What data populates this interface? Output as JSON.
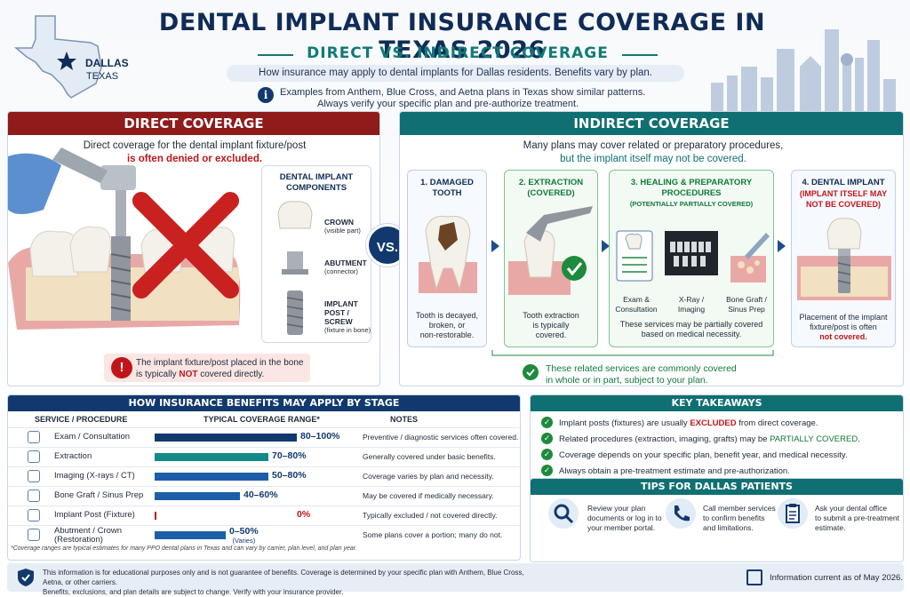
{
  "header": {
    "title": "DENTAL IMPLANT INSURANCE COVERAGE IN TEXAS 2026",
    "subtitle": "DIRECT VS. INDIRECT COVERAGE",
    "tagline": "How insurance may apply to dental implants for Dallas residents. Benefits vary by plan.",
    "note_line1": "Examples from Anthem, Blue Cross, and Aetna plans in Texas show similar patterns.",
    "note_line2": "Always verify your specific plan and pre-authorize treatment.",
    "city": "DALLAS",
    "state": "TEXAS"
  },
  "direct": {
    "heading": "DIRECT COVERAGE",
    "desc1": "Direct coverage for the dental implant fixture/post",
    "desc2": "is often denied or excluded.",
    "components_title1": "DENTAL IMPLANT",
    "components_title2": "COMPONENTS",
    "components": [
      {
        "name": "CROWN",
        "note": "(visible part)"
      },
      {
        "name": "ABUTMENT",
        "note": "(connector)"
      },
      {
        "name": "IMPLANT POST / SCREW",
        "note": "(fixture in bone)"
      }
    ],
    "warn1": "The implant fixture/post placed in the bone",
    "warn2a": "is typically ",
    "warn2b": "NOT",
    "warn2c": " covered directly."
  },
  "vs_label": "VS.",
  "indirect": {
    "heading": "INDIRECT COVERAGE",
    "desc1": "Many plans may cover related or preparatory procedures,",
    "desc2": "but the implant itself may not be covered.",
    "steps": [
      {
        "title1": "1. DAMAGED",
        "title2": "TOOTH",
        "desc": [
          "Tooth is decayed,",
          "broken, or",
          "non-restorable."
        ]
      },
      {
        "title1": "2. EXTRACTION",
        "title2": "(COVERED)",
        "desc": [
          "Tooth extraction",
          "is typically",
          "covered."
        ]
      },
      {
        "title1": "3. HEALING & PREPARATORY",
        "title2": "PROCEDURES",
        "title3": "(POTENTIALLY PARTIALLY COVERED)",
        "items": [
          [
            "Exam &",
            "Consultation"
          ],
          [
            "X-Ray /",
            "Imaging"
          ],
          [
            "Bone Graft /",
            "Sinus Prep"
          ]
        ],
        "desc": [
          "These services may be partially covered",
          "based on medical necessity."
        ]
      },
      {
        "title1": "4. DENTAL IMPLANT",
        "title2": "(IMPLANT ITSELF MAY",
        "title3": "NOT BE COVERED)",
        "desc": [
          "Placement of the implant",
          "fixture/post is often",
          "not covered."
        ]
      }
    ],
    "covered_note1": "These related services are commonly covered",
    "covered_note2": "in whole or in part, subject to your plan."
  },
  "table": {
    "heading": "HOW INSURANCE BENEFITS MAY APPLY BY STAGE",
    "col1": "SERVICE / PROCEDURE",
    "col2": "TYPICAL COVERAGE RANGE*",
    "col3": "NOTES",
    "rows": [
      {
        "label": "Exam / Consultation",
        "range": "80–100%",
        "low": 80,
        "high": 100,
        "note": "Preventive / diagnostic services often covered.",
        "color": "#12396e"
      },
      {
        "label": "Extraction",
        "range": "70–80%",
        "low": 70,
        "high": 80,
        "note": "Generally covered under basic benefits.",
        "color": "#138a8a"
      },
      {
        "label": "Imaging (X-rays / CT)",
        "range": "50–80%",
        "low": 50,
        "high": 80,
        "note": "Coverage varies by plan and necessity.",
        "color": "#1c5fa8"
      },
      {
        "label": "Bone Graft / Sinus Prep",
        "range": "40–60%",
        "low": 40,
        "high": 60,
        "note": "May be covered if medically necessary.",
        "color": "#1c5fa8"
      },
      {
        "label": "Implant Post (Fixture)",
        "range": "0%",
        "low": 0,
        "high": 0,
        "note": "Typically excluded / not covered directly.",
        "color": "#c0161b"
      },
      {
        "label": "Abutment / Crown",
        "label2": "(Restoration)",
        "range": "0–50%",
        "range_note": "(Varies)",
        "low": 0,
        "high": 50,
        "note": "Some plans cover a portion; many do not.",
        "color": "#1c5fa8"
      }
    ],
    "footnote": "*Coverage ranges are typical estimates for many PPO dental plans in Texas and can vary by carrier, plan level, and plan year."
  },
  "takeaways": {
    "heading": "KEY TAKEAWAYS",
    "items": [
      {
        "a": "Implant posts (fixtures) are usually ",
        "b": "EXCLUDED",
        "c": " from direct coverage."
      },
      {
        "a": "Related procedures (extraction, imaging, grafts) may be ",
        "b": "PARTIALLY COVERED",
        "c": "."
      },
      {
        "a": "Coverage depends on your specific plan, benefit year, and medical necessity.",
        "b": "",
        "c": ""
      },
      {
        "a": "Always obtain a pre-treatment estimate and pre-authorization.",
        "b": "",
        "c": ""
      }
    ]
  },
  "tips": {
    "heading": "TIPS FOR DALLAS PATIENTS",
    "items": [
      {
        "icon": "magnifier-icon",
        "lines": [
          "Review your plan",
          "documents or log in to",
          "your member portal."
        ]
      },
      {
        "icon": "phone-icon",
        "lines": [
          "Call member services",
          "to confirm benefits",
          "and limitations."
        ]
      },
      {
        "icon": "clipboard-icon",
        "lines": [
          "Ask your dental office",
          "to submit a pre-treatment",
          "estimate."
        ]
      }
    ]
  },
  "disclaimer": {
    "line1": "This information is for educational purposes only and is not guarantee of benefits. Coverage is determined by your specific plan with Anthem, Blue Cross, Aetna, or other carriers.",
    "line2": "Benefits, exclusions, and plan details are subject to change. Verify with your insurance provider.",
    "current": "Information current as of May 2026."
  }
}
